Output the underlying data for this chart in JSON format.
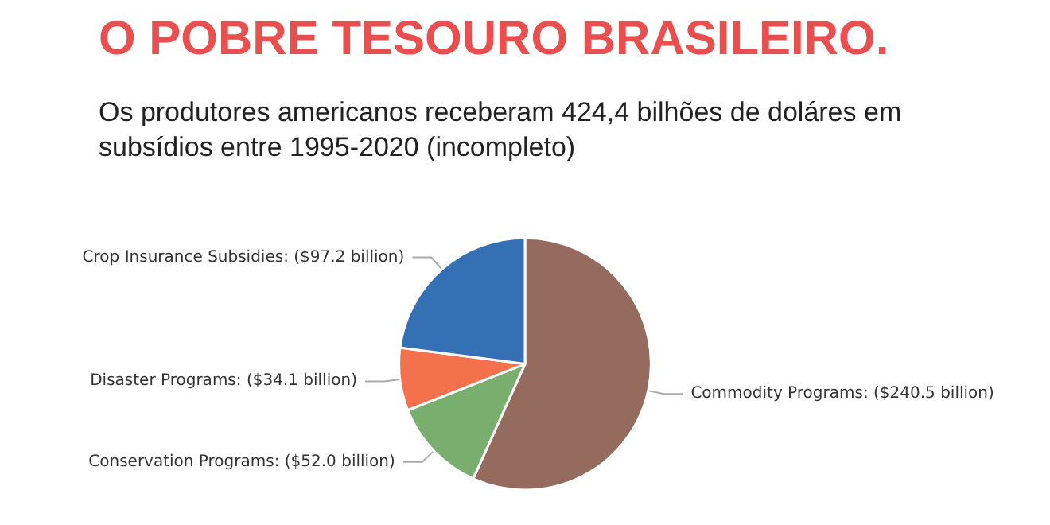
{
  "chart_data": {
    "type": "pie",
    "title": "O POBRE TESOURO BRASILEIRO.",
    "subtitle": "Os produtores americanos receberam 424,4 bilhões de doláres em subsídios entre 1995-2020 (incompleto)",
    "categories": [
      "Commodity Programs",
      "Conservation Programs",
      "Disaster Programs",
      "Crop Insurance Subsidies"
    ],
    "values": [
      240.5,
      52.0,
      34.1,
      97.2
    ],
    "value_labels": [
      "($240.5 billion)",
      "($52.0 billion)",
      "($34.1 billion)",
      "($97.2 billion)"
    ],
    "colors": [
      "#946b5e",
      "#79ae6e",
      "#f4714e",
      "#3570b5"
    ],
    "legend": false
  }
}
